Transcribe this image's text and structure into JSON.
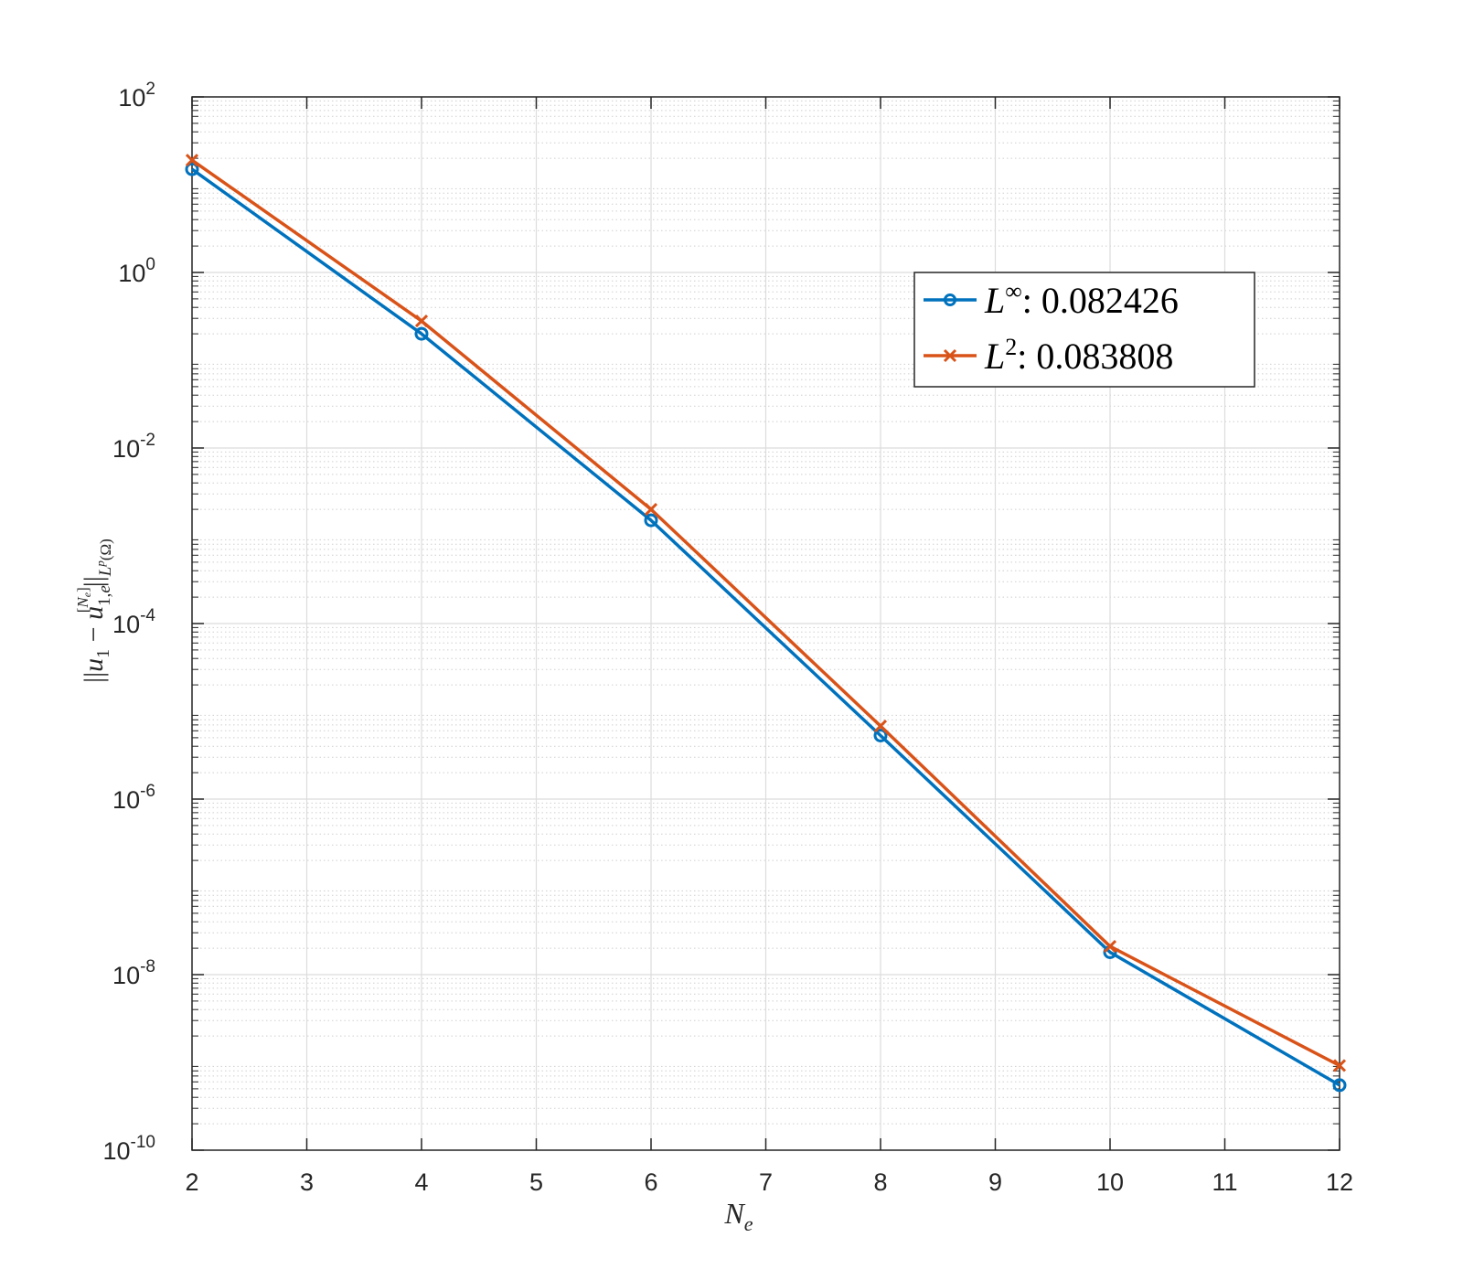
{
  "chart_data": {
    "type": "line",
    "xlabel": "N_e",
    "ylabel": "||u_1 - u_{1,e}^{[N_e]}||_{L^p(Ω)}",
    "x_ticks": [
      "2",
      "3",
      "4",
      "5",
      "6",
      "7",
      "8",
      "9",
      "10",
      "11",
      "12"
    ],
    "y_tick_exponents": [
      "-10",
      "-8",
      "-6",
      "-4",
      "-2",
      "0",
      "2"
    ],
    "y_tick_base": "10",
    "xlim": [
      2,
      12
    ],
    "ylim": [
      1e-10,
      100
    ],
    "y_scale": "log",
    "grid": true,
    "minor_grid": true,
    "legend_position": "top-right",
    "series": [
      {
        "name": "L^∞: 0.082426",
        "legend_symbol": "L",
        "legend_sup": "∞",
        "legend_value": ":  0.082426",
        "color": "#0072BD",
        "marker": "circle",
        "x": [
          2,
          4,
          6,
          8,
          10,
          12
        ],
        "y": [
          15,
          0.2,
          0.0015,
          5.3e-06,
          1.8e-08,
          5.5e-10
        ]
      },
      {
        "name": "L^2: 0.083808",
        "legend_symbol": "L",
        "legend_sup": "2",
        "legend_value": ":  0.083808",
        "color": "#D95319",
        "marker": "x",
        "x": [
          2,
          4,
          6,
          8,
          10,
          12
        ],
        "y": [
          19,
          0.28,
          0.002,
          6.8e-06,
          2.1e-08,
          9.2e-10
        ]
      }
    ]
  }
}
